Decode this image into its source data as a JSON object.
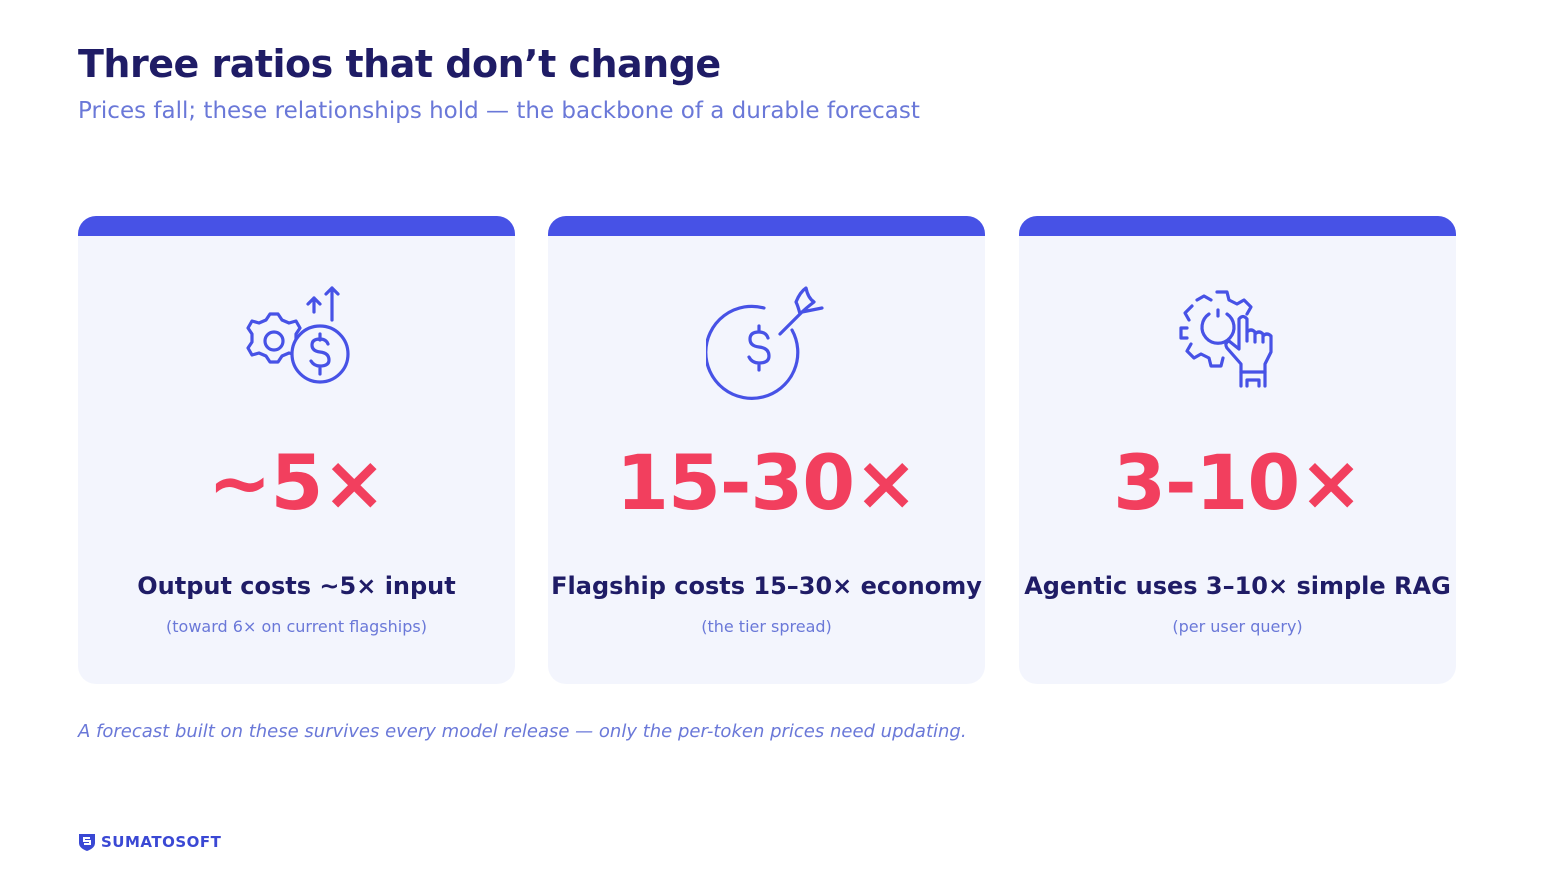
{
  "header": {
    "title": "Three ratios that don’t change",
    "subtitle": "Prices fall; these relationships hold — the backbone of a durable forecast"
  },
  "cards": [
    {
      "ratio": "~5×",
      "label": "Output costs ~5× input",
      "note": "(toward 6× on current flagships)"
    },
    {
      "ratio": "15-30×",
      "label": "Flagship costs 15–30× economy",
      "note": "(the tier spread)"
    },
    {
      "ratio": "3-10×",
      "label": "Agentic uses 3–10× simple RAG",
      "note": "(per user query)"
    }
  ],
  "footnote": "A forecast built on these survives every model release — only the per-token prices need updating.",
  "brand": "SUMATOSOFT"
}
